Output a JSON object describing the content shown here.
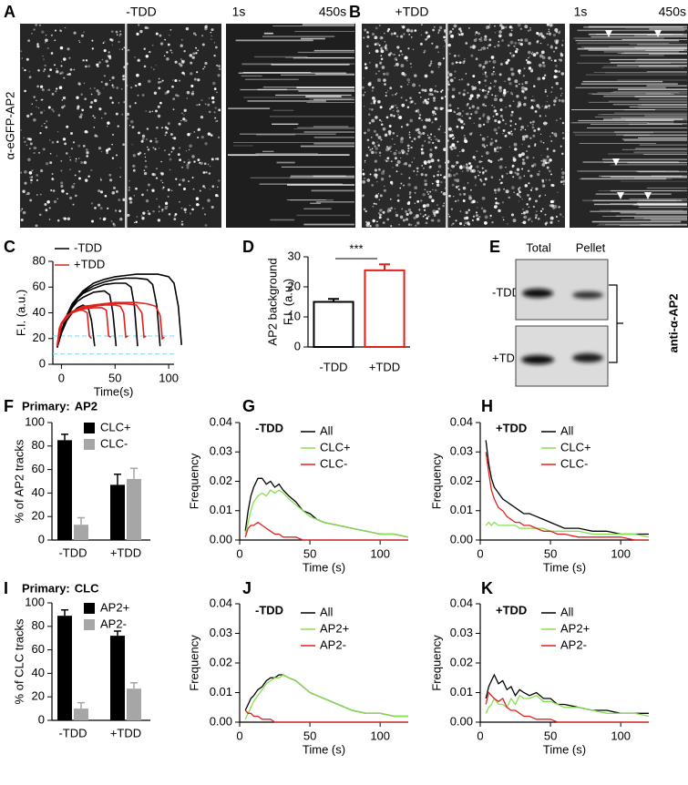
{
  "image_panels": [
    {
      "label": "A",
      "condition": "-TDD",
      "kymo_start": "1s",
      "kymo_end": "450s"
    },
    {
      "label": "B",
      "condition": "+TDD",
      "kymo_start": "1s",
      "kymo_end": "450s"
    }
  ],
  "image_ylabel": "α-eGFP-AP2",
  "blot": {
    "label": "E",
    "columns": [
      "Total",
      "Pellet"
    ],
    "rows": [
      "-TDD",
      "+TDD"
    ],
    "antibody": "anti-α-AP2"
  },
  "chart_data": [
    {
      "type": "curves",
      "label": "C",
      "ylabel": "F.I. (a.u.)",
      "xlabel": "Time(s)",
      "xlim": [
        -8,
        105
      ],
      "xticks": [
        0,
        50,
        100
      ],
      "ylim": [
        0,
        80
      ],
      "yticks": [
        0,
        20,
        40,
        60,
        80
      ],
      "legend": "upper left",
      "hlines": [
        22,
        8
      ],
      "hline_color": "#8fd6ea",
      "series": [
        {
          "name": "-TDD",
          "color": "#000000",
          "curves": [
            {
              "x": [
                -4,
                0,
                5,
                10,
                15,
                20,
                25,
                28,
                31
              ],
              "values": [
                13,
                24,
                34,
                40,
                44,
                46,
                44,
                34,
                14
              ]
            },
            {
              "x": [
                -4,
                0,
                5,
                10,
                15,
                20,
                30,
                40,
                45,
                48,
                51
              ],
              "values": [
                13,
                25,
                36,
                44,
                49,
                52,
                56,
                57,
                54,
                40,
                14
              ]
            },
            {
              "x": [
                -4,
                0,
                5,
                10,
                15,
                20,
                30,
                40,
                50,
                60,
                65,
                68,
                71
              ],
              "values": [
                13,
                25,
                37,
                45,
                51,
                55,
                59,
                62,
                63,
                63,
                60,
                45,
                14
              ]
            },
            {
              "x": [
                -4,
                0,
                5,
                10,
                20,
                30,
                40,
                50,
                60,
                70,
                80,
                85,
                89,
                92
              ],
              "values": [
                13,
                26,
                38,
                46,
                56,
                61,
                64,
                66,
                67,
                67,
                66,
                62,
                45,
                14
              ]
            },
            {
              "x": [
                -4,
                0,
                5,
                10,
                20,
                30,
                40,
                50,
                60,
                70,
                80,
                90,
                100,
                105,
                109,
                112
              ],
              "values": [
                13,
                26,
                38,
                47,
                57,
                63,
                66,
                68,
                69,
                70,
                70,
                70,
                68,
                63,
                45,
                15
              ]
            }
          ]
        },
        {
          "name": "+TDD",
          "color": "#e0201b",
          "curves": [
            {
              "x": [
                -4,
                -2,
                0,
                5,
                10,
                15,
                20,
                24,
                26,
                28
              ],
              "values": [
                14,
                28,
                32,
                38,
                40,
                42,
                42,
                40,
                22,
                20
              ]
            },
            {
              "x": [
                -4,
                0,
                5,
                10,
                20,
                30,
                38,
                42,
                44,
                46
              ],
              "values": [
                14,
                31,
                37,
                40,
                43,
                44,
                44,
                42,
                22,
                21
              ]
            },
            {
              "x": [
                -4,
                0,
                5,
                10,
                20,
                30,
                40,
                50,
                55,
                58,
                60,
                62
              ],
              "values": [
                14,
                31,
                37,
                41,
                44,
                45,
                46,
                46,
                45,
                40,
                21,
                22
              ]
            },
            {
              "x": [
                -4,
                0,
                10,
                20,
                30,
                40,
                50,
                60,
                70,
                75,
                77,
                79
              ],
              "values": [
                14,
                31,
                41,
                44,
                46,
                47,
                47,
                47,
                46,
                40,
                21,
                22
              ]
            },
            {
              "x": [
                -4,
                0,
                10,
                20,
                30,
                40,
                50,
                60,
                70,
                80,
                88,
                92,
                94,
                96
              ],
              "values": [
                14,
                32,
                41,
                45,
                46,
                47,
                48,
                48,
                48,
                47,
                45,
                38,
                20,
                21
              ]
            }
          ]
        }
      ]
    },
    {
      "type": "bar",
      "label": "D",
      "ylabel": [
        "AP2 background",
        "F.I. (a.u.)"
      ],
      "categories": [
        "-TDD",
        "+TDD"
      ],
      "values": [
        15,
        25.5
      ],
      "errors": [
        1,
        2
      ],
      "colors": [
        "#000000",
        "#e0201b"
      ],
      "ylim": [
        0,
        30
      ],
      "yticks": [
        0,
        10,
        20,
        30
      ],
      "significance": "***"
    },
    {
      "type": "grouped_bar",
      "label": "F",
      "title_prefix": "Primary:",
      "title": "AP2",
      "ylabel": "% of AP2 tracks",
      "categories": [
        "-TDD",
        "+TDD"
      ],
      "legend": "upper right",
      "series": [
        {
          "name": "CLC+",
          "color": "#000000",
          "values": [
            85,
            47
          ],
          "errors": [
            5,
            9
          ]
        },
        {
          "name": "CLC-",
          "color": "#a6a6a6",
          "values": [
            13,
            52
          ],
          "errors": [
            6,
            9
          ]
        }
      ],
      "ylim": [
        0,
        100
      ],
      "yticks": [
        0,
        20,
        40,
        60,
        80,
        100
      ]
    },
    {
      "type": "line",
      "label": "G",
      "title": "-TDD",
      "ylabel": "Frequency",
      "xlabel": "Time (s)",
      "legend": "upper right",
      "x": [
        4,
        6,
        8,
        10,
        13,
        16,
        19,
        22,
        25,
        28,
        31,
        35,
        40,
        45,
        50,
        55,
        60,
        70,
        80,
        90,
        100,
        110,
        120
      ],
      "series": [
        {
          "name": "All",
          "color": "#000000",
          "values": [
            0.003,
            0.01,
            0.015,
            0.018,
            0.021,
            0.021,
            0.019,
            0.02,
            0.018,
            0.019,
            0.017,
            0.015,
            0.013,
            0.01,
            0.009,
            0.007,
            0.006,
            0.005,
            0.004,
            0.003,
            0.002,
            0.002,
            0.001
          ]
        },
        {
          "name": "CLC+",
          "color": "#86e04f",
          "values": [
            0.002,
            0.006,
            0.01,
            0.013,
            0.015,
            0.016,
            0.015,
            0.017,
            0.016,
            0.017,
            0.016,
            0.014,
            0.012,
            0.01,
            0.008,
            0.007,
            0.006,
            0.005,
            0.004,
            0.003,
            0.002,
            0.002,
            0.001
          ]
        },
        {
          "name": "CLC-",
          "color": "#e0201b",
          "values": [
            0.001,
            0.004,
            0.005,
            0.005,
            0.006,
            0.005,
            0.004,
            0.003,
            0.002,
            0.002,
            0.001,
            0.001,
            0.001,
            0,
            0,
            0,
            0,
            0,
            0,
            0,
            0,
            0,
            0
          ]
        }
      ],
      "xlim": [
        0,
        120
      ],
      "xticks": [
        0,
        50,
        100
      ],
      "ylim": [
        0,
        0.04
      ],
      "yticks": [
        {
          "value": 0,
          "label": "0.00"
        },
        0.01,
        0.02,
        0.03,
        0.04
      ]
    },
    {
      "type": "line",
      "label": "H",
      "title": "+TDD",
      "ylabel": "Frequency",
      "xlabel": "Time (s)",
      "legend": "upper right",
      "x": [
        4,
        6,
        8,
        10,
        13,
        16,
        19,
        22,
        25,
        28,
        31,
        35,
        40,
        45,
        50,
        55,
        60,
        70,
        80,
        90,
        100,
        110,
        120
      ],
      "series": [
        {
          "name": "All",
          "color": "#000000",
          "values": [
            0.034,
            0.026,
            0.021,
            0.018,
            0.016,
            0.014,
            0.013,
            0.012,
            0.011,
            0.01,
            0.009,
            0.009,
            0.008,
            0.007,
            0.006,
            0.005,
            0.004,
            0.004,
            0.003,
            0.003,
            0.002,
            0.002,
            0.002
          ]
        },
        {
          "name": "CLC+",
          "color": "#86e04f",
          "values": [
            0.005,
            0.006,
            0.005,
            0.006,
            0.005,
            0.005,
            0.005,
            0.005,
            0.005,
            0.004,
            0.004,
            0.004,
            0.004,
            0.004,
            0.003,
            0.003,
            0.003,
            0.003,
            0.002,
            0.002,
            0.002,
            0.002,
            0.001
          ]
        },
        {
          "name": "CLC-",
          "color": "#e0201b",
          "values": [
            0.03,
            0.023,
            0.017,
            0.014,
            0.011,
            0.01,
            0.008,
            0.007,
            0.006,
            0.006,
            0.005,
            0.005,
            0.004,
            0.003,
            0.003,
            0.002,
            0.002,
            0.001,
            0.001,
            0.001,
            0.001,
            0,
            0
          ]
        }
      ],
      "xlim": [
        0,
        120
      ],
      "xticks": [
        0,
        50,
        100
      ],
      "ylim": [
        0,
        0.04
      ],
      "yticks": [
        {
          "value": 0,
          "label": "0.00"
        },
        0.01,
        0.02,
        0.03,
        0.04
      ]
    },
    {
      "type": "grouped_bar",
      "label": "I",
      "title_prefix": "Primary:",
      "title": "CLC",
      "ylabel": "% of CLC tracks",
      "categories": [
        "-TDD",
        "+TDD"
      ],
      "legend": "upper right",
      "series": [
        {
          "name": "AP2+",
          "color": "#000000",
          "values": [
            89,
            72
          ],
          "errors": [
            5,
            4
          ]
        },
        {
          "name": "AP2-",
          "color": "#a6a6a6",
          "values": [
            10,
            27
          ],
          "errors": [
            5,
            5
          ]
        }
      ],
      "ylim": [
        0,
        100
      ],
      "yticks": [
        0,
        20,
        40,
        60,
        80,
        100
      ]
    },
    {
      "type": "line",
      "label": "J",
      "title": "-TDD",
      "ylabel": "Frequency",
      "xlabel": "Time (s)",
      "legend": "upper right",
      "x": [
        4,
        6,
        8,
        10,
        13,
        16,
        19,
        22,
        25,
        28,
        31,
        35,
        40,
        45,
        50,
        55,
        60,
        70,
        80,
        90,
        100,
        110,
        120
      ],
      "series": [
        {
          "name": "All",
          "color": "#000000",
          "values": [
            0.004,
            0.006,
            0.008,
            0.009,
            0.011,
            0.012,
            0.014,
            0.015,
            0.015,
            0.016,
            0.016,
            0.015,
            0.014,
            0.012,
            0.01,
            0.009,
            0.008,
            0.006,
            0.004,
            0.003,
            0.003,
            0.002,
            0.002
          ]
        },
        {
          "name": "AP2+",
          "color": "#86e04f",
          "values": [
            0.001,
            0.003,
            0.005,
            0.007,
            0.009,
            0.011,
            0.013,
            0.014,
            0.015,
            0.015,
            0.016,
            0.015,
            0.014,
            0.012,
            0.01,
            0.009,
            0.008,
            0.006,
            0.004,
            0.003,
            0.003,
            0.002,
            0.002
          ]
        },
        {
          "name": "AP2-",
          "color": "#e0201b",
          "values": [
            0.004,
            0.003,
            0.003,
            0.002,
            0.002,
            0.001,
            0.001,
            0.001,
            0,
            0,
            0,
            0,
            0,
            0,
            0,
            0,
            0,
            0,
            0,
            0,
            0,
            0,
            0
          ]
        }
      ],
      "xlim": [
        0,
        120
      ],
      "xticks": [
        0,
        50,
        100
      ],
      "ylim": [
        0,
        0.04
      ],
      "yticks": [
        {
          "value": 0,
          "label": "0.00"
        },
        0.01,
        0.02,
        0.03,
        0.04
      ]
    },
    {
      "type": "line",
      "label": "K",
      "title": "+TDD",
      "ylabel": "Frequency",
      "xlabel": "Time (s)",
      "legend": "upper right",
      "x": [
        4,
        6,
        8,
        10,
        13,
        16,
        19,
        22,
        25,
        28,
        31,
        35,
        40,
        45,
        50,
        55,
        60,
        70,
        80,
        90,
        100,
        110,
        120
      ],
      "series": [
        {
          "name": "All",
          "color": "#000000",
          "values": [
            0.008,
            0.012,
            0.014,
            0.016,
            0.013,
            0.014,
            0.011,
            0.012,
            0.009,
            0.011,
            0.01,
            0.009,
            0.01,
            0.008,
            0.008,
            0.006,
            0.006,
            0.005,
            0.004,
            0.004,
            0.003,
            0.003,
            0.003
          ]
        },
        {
          "name": "AP2+",
          "color": "#86e04f",
          "values": [
            0.003,
            0.005,
            0.006,
            0.008,
            0.006,
            0.006,
            0.005,
            0.008,
            0.006,
            0.009,
            0.008,
            0.008,
            0.009,
            0.007,
            0.007,
            0.006,
            0.005,
            0.005,
            0.004,
            0.003,
            0.003,
            0.003,
            0.002
          ]
        },
        {
          "name": "AP2-",
          "color": "#e0201b",
          "values": [
            0.006,
            0.01,
            0.009,
            0.008,
            0.007,
            0.008,
            0.005,
            0.004,
            0.004,
            0.003,
            0.002,
            0.002,
            0.001,
            0.001,
            0.001,
            0,
            0,
            0,
            0,
            0,
            0,
            0,
            0
          ]
        }
      ],
      "xlim": [
        0,
        120
      ],
      "xticks": [
        0,
        50,
        100
      ],
      "ylim": [
        0,
        0.04
      ],
      "yticks": [
        {
          "value": 0,
          "label": "0.00"
        },
        0.01,
        0.02,
        0.03,
        0.04
      ]
    }
  ]
}
